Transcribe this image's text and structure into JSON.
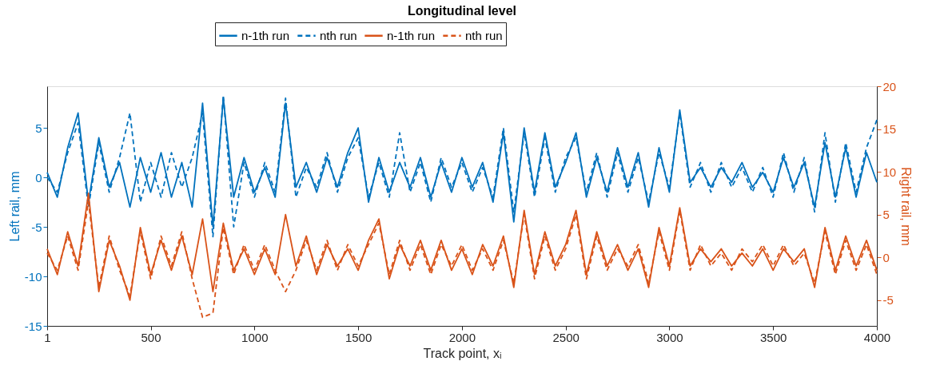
{
  "chart_data": {
    "type": "line",
    "title": "Longitudinal level",
    "xlabel": "Track point, xᵢ",
    "ylabel": "Left rail, mm",
    "y2label": "Right rail, mm",
    "x": [
      1,
      50,
      100,
      150,
      200,
      250,
      300,
      350,
      400,
      450,
      500,
      550,
      600,
      650,
      700,
      750,
      800,
      850,
      900,
      950,
      1000,
      1050,
      1100,
      1150,
      1200,
      1250,
      1300,
      1350,
      1400,
      1450,
      1500,
      1550,
      1600,
      1650,
      1700,
      1750,
      1800,
      1850,
      1900,
      1950,
      2000,
      2050,
      2100,
      2150,
      2200,
      2250,
      2300,
      2350,
      2400,
      2450,
      2500,
      2550,
      2600,
      2650,
      2700,
      2750,
      2800,
      2850,
      2900,
      2950,
      3000,
      3050,
      3100,
      3150,
      3200,
      3250,
      3300,
      3350,
      3400,
      3450,
      3500,
      3550,
      3600,
      3650,
      3700,
      3750,
      3800,
      3850,
      3900,
      3950,
      4000
    ],
    "xlim": [
      1,
      4000
    ],
    "xticks": [
      1,
      500,
      {
        "value": 1000,
        "label": "1000"
      },
      {
        "value": 1500,
        "label": "1500"
      },
      {
        "value": 2000,
        "label": "2000"
      },
      {
        "value": 2500,
        "label": "2500"
      },
      {
        "value": 3000,
        "label": "3000"
      },
      {
        "value": 3500,
        "label": "3500"
      },
      {
        "value": 4000,
        "label": "4000"
      }
    ],
    "ylim": [
      -15,
      9.2
    ],
    "yticks": [
      -15,
      -10,
      -5,
      0,
      5
    ],
    "y2lim": [
      -8,
      20
    ],
    "y2ticks": [
      -5,
      0,
      5,
      10,
      15,
      20
    ],
    "grid": false,
    "legend": "top",
    "marker": "none",
    "series": [
      {
        "name": "n-1th run",
        "color": "#0072bd",
        "line_style": "solid",
        "values": [
          0.5,
          -2,
          3,
          6.5,
          -2.5,
          4,
          -1,
          1.5,
          -3,
          2,
          -1.5,
          2.5,
          -2,
          1.5,
          -3,
          7.5,
          -5,
          8,
          -2,
          2,
          -1.5,
          1,
          -2,
          7.5,
          -1,
          1.5,
          -1.5,
          2,
          -1,
          2.5,
          5,
          -2.5,
          2,
          -1.5,
          1.5,
          -1,
          2,
          -2,
          1.5,
          -1.5,
          2,
          -1,
          1.5,
          -2.5,
          4.5,
          -4.5,
          5,
          -1.5,
          4.5,
          -1,
          1.5,
          4.5,
          -2,
          2,
          -1.5,
          3,
          -1,
          2.5,
          -3,
          3,
          -1.5,
          6.8,
          -0.5,
          1,
          -1,
          1,
          -0.5,
          1.5,
          -1,
          0.5,
          -1.5,
          2,
          -1,
          1.5,
          -3,
          3.5,
          -2,
          3,
          -2,
          2.5,
          -0.5
        ]
      },
      {
        "name": "nth run",
        "color": "#0072bd",
        "line_style": "dashed",
        "values": [
          0,
          -1.5,
          2.5,
          5.5,
          -3,
          3.5,
          -1.5,
          2,
          6.5,
          -2.5,
          1.5,
          -2,
          2.5,
          -1,
          2,
          6.5,
          -6,
          8.3,
          -5,
          1.5,
          -2,
          1.5,
          -1.5,
          8,
          -2,
          1,
          -1,
          2.5,
          -1.5,
          2,
          4,
          -2,
          1.5,
          -2,
          4.5,
          -1.5,
          1.5,
          -2.5,
          2,
          -1,
          1.5,
          -1.5,
          1,
          -2,
          5,
          -3.5,
          4.5,
          -2,
          4,
          -1.5,
          2,
          4,
          -1.5,
          2.5,
          -2,
          2.5,
          -1.5,
          2,
          -2.5,
          2.5,
          -1,
          6.5,
          -1,
          1.5,
          -1.5,
          1.5,
          -1,
          1,
          -1.5,
          1,
          -2,
          2.5,
          -1.5,
          2,
          -3.5,
          4.5,
          -2.5,
          3.5,
          -1.5,
          3,
          5.8
        ]
      },
      {
        "name": "n-1th run",
        "color": "#d95319",
        "line_style": "solid",
        "axis": "y2",
        "values": [
          1,
          -2,
          3,
          -1,
          7.5,
          -4,
          2,
          -1,
          -5,
          3.5,
          -2,
          2,
          -1.5,
          2.5,
          -2,
          4.5,
          -4,
          4,
          -1.5,
          1,
          -2,
          1,
          -2,
          5,
          -1,
          2.5,
          -2,
          1.5,
          -1,
          1,
          -1.5,
          2,
          4.5,
          -2.5,
          1.5,
          -1,
          2,
          -1.5,
          2,
          -1.5,
          1,
          -2,
          1.5,
          -1,
          2.5,
          -3.5,
          5.5,
          -2,
          3,
          -1,
          1.5,
          5.5,
          -2,
          3,
          -1,
          1.5,
          -1.5,
          1,
          -3.5,
          3.5,
          -1,
          5.8,
          -1,
          1,
          -0.5,
          1,
          -1,
          0.5,
          -1,
          1,
          -1.5,
          1,
          -0.5,
          1,
          -3.5,
          3.5,
          -1.5,
          2.5,
          -1,
          2,
          -1.5
        ]
      },
      {
        "name": "nth run",
        "color": "#d95319",
        "line_style": "dashed",
        "axis": "y2",
        "values": [
          0.5,
          -1.5,
          2.5,
          -1.5,
          6.5,
          -3.5,
          2.5,
          -1.5,
          -4.5,
          3,
          -2.5,
          2.5,
          -1,
          3,
          -2.5,
          -7,
          -6.5,
          3.5,
          -2,
          1.5,
          -1.5,
          1.5,
          -1.5,
          -4,
          -1.5,
          2,
          -1.5,
          2,
          -1.5,
          1.5,
          -1,
          1.5,
          4,
          -2,
          2,
          -1.5,
          1.5,
          -2,
          1.5,
          -1,
          1.5,
          -1.5,
          1,
          -1.5,
          2,
          -3,
          5,
          -2.5,
          2.5,
          -1.5,
          1,
          5,
          -2.5,
          2.5,
          -1.5,
          1,
          -1,
          1.5,
          -3,
          3,
          -1.5,
          5.5,
          -1.5,
          1.5,
          -1,
          0.5,
          -1.5,
          1,
          -0.5,
          1.5,
          -1,
          1.5,
          -1,
          0.5,
          -3,
          3,
          -2,
          2,
          -1.5,
          1.5,
          -2
        ]
      }
    ]
  }
}
